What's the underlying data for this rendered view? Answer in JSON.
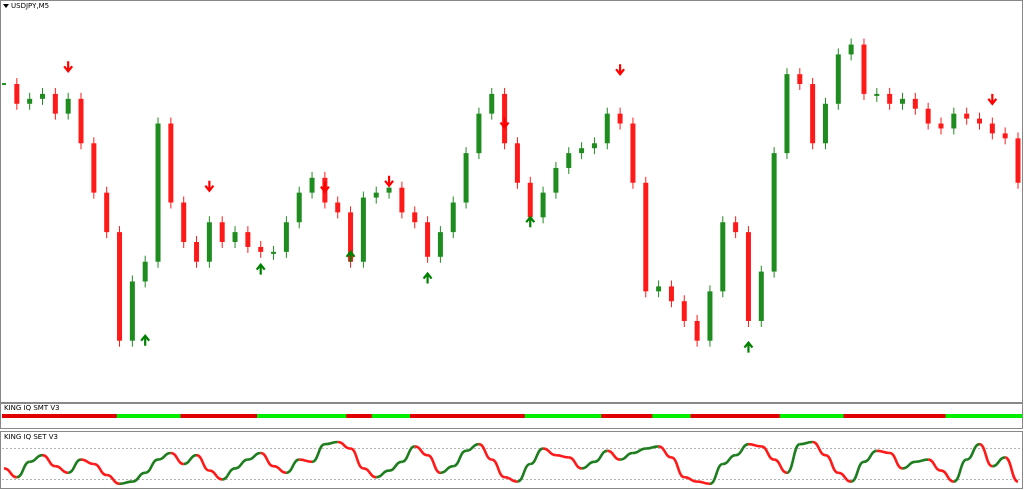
{
  "chart_data": [
    {
      "type": "candlestick",
      "title": "USDJPY,M5",
      "values": [
        315,
        295,
        300,
        305,
        285,
        300,
        255,
        205,
        165,
        55,
        115,
        135,
        275,
        195,
        155,
        135,
        175,
        155,
        165,
        150,
        145,
        145,
        175,
        205,
        220,
        195,
        185,
        135,
        200,
        205,
        210,
        185,
        175,
        140,
        165,
        195,
        245,
        285,
        305,
        255,
        215,
        180,
        205,
        230,
        245,
        250,
        255,
        285,
        275,
        215,
        105,
        110,
        95,
        75,
        55,
        105,
        175,
        165,
        75,
        125,
        245,
        325,
        315,
        255,
        295,
        345,
        355,
        305,
        305,
        295,
        300,
        290,
        275,
        270,
        285,
        280,
        275,
        265,
        260,
        215
      ],
      "ylim": [
        0,
        390
      ],
      "up_color": "#1e8c1e",
      "down_color": "#ff1a1a",
      "down_arrows": {
        "x": [
          5,
          16,
          25,
          30,
          39,
          48,
          77
        ],
        "y": [
          333,
          212,
          211,
          217,
          276,
          330,
          300
        ],
        "color": "#ff0000"
      },
      "up_arrows": {
        "x": [
          11,
          20,
          27,
          33,
          41,
          58
        ],
        "y": [
          55,
          127,
          140,
          118,
          175,
          48
        ],
        "color": "#008000"
      }
    },
    {
      "type": "strip",
      "title": "KING IQ SMT V3",
      "values": [
        0,
        0,
        0,
        0,
        0,
        0,
        0,
        0,
        0,
        1,
        1,
        1,
        1,
        1,
        0,
        0,
        0,
        0,
        0,
        0,
        1,
        1,
        1,
        1,
        1,
        1,
        1,
        0,
        0,
        1,
        1,
        1,
        0,
        0,
        0,
        0,
        0,
        0,
        0,
        0,
        0,
        1,
        1,
        1,
        1,
        1,
        1,
        0,
        0,
        0,
        0,
        1,
        1,
        1,
        0,
        0,
        0,
        0,
        0,
        0,
        0,
        1,
        1,
        1,
        1,
        1,
        0,
        0,
        0,
        0,
        0,
        0,
        0,
        0,
        1,
        1,
        1,
        1,
        1,
        1
      ],
      "colors": [
        "#e00000",
        "#00ee00"
      ]
    },
    {
      "type": "line",
      "title": "KING IQ SET V3",
      "values": [
        40,
        20,
        55,
        70,
        45,
        30,
        60,
        50,
        25,
        5,
        10,
        30,
        60,
        75,
        50,
        70,
        35,
        15,
        40,
        60,
        75,
        45,
        30,
        60,
        55,
        95,
        100,
        85,
        40,
        20,
        35,
        55,
        90,
        70,
        30,
        45,
        80,
        95,
        60,
        20,
        10,
        50,
        85,
        70,
        65,
        40,
        55,
        80,
        60,
        75,
        85,
        90,
        65,
        20,
        10,
        5,
        50,
        70,
        95,
        90,
        60,
        30,
        95,
        100,
        70,
        30,
        10,
        55,
        80,
        75,
        40,
        55,
        60,
        35,
        10,
        60,
        95,
        45,
        65,
        10
      ],
      "ylim": [
        0,
        100
      ],
      "levels": [
        15,
        85
      ],
      "rise_color": "#1e7d1e",
      "fall_color": "#ff1a1a"
    }
  ]
}
